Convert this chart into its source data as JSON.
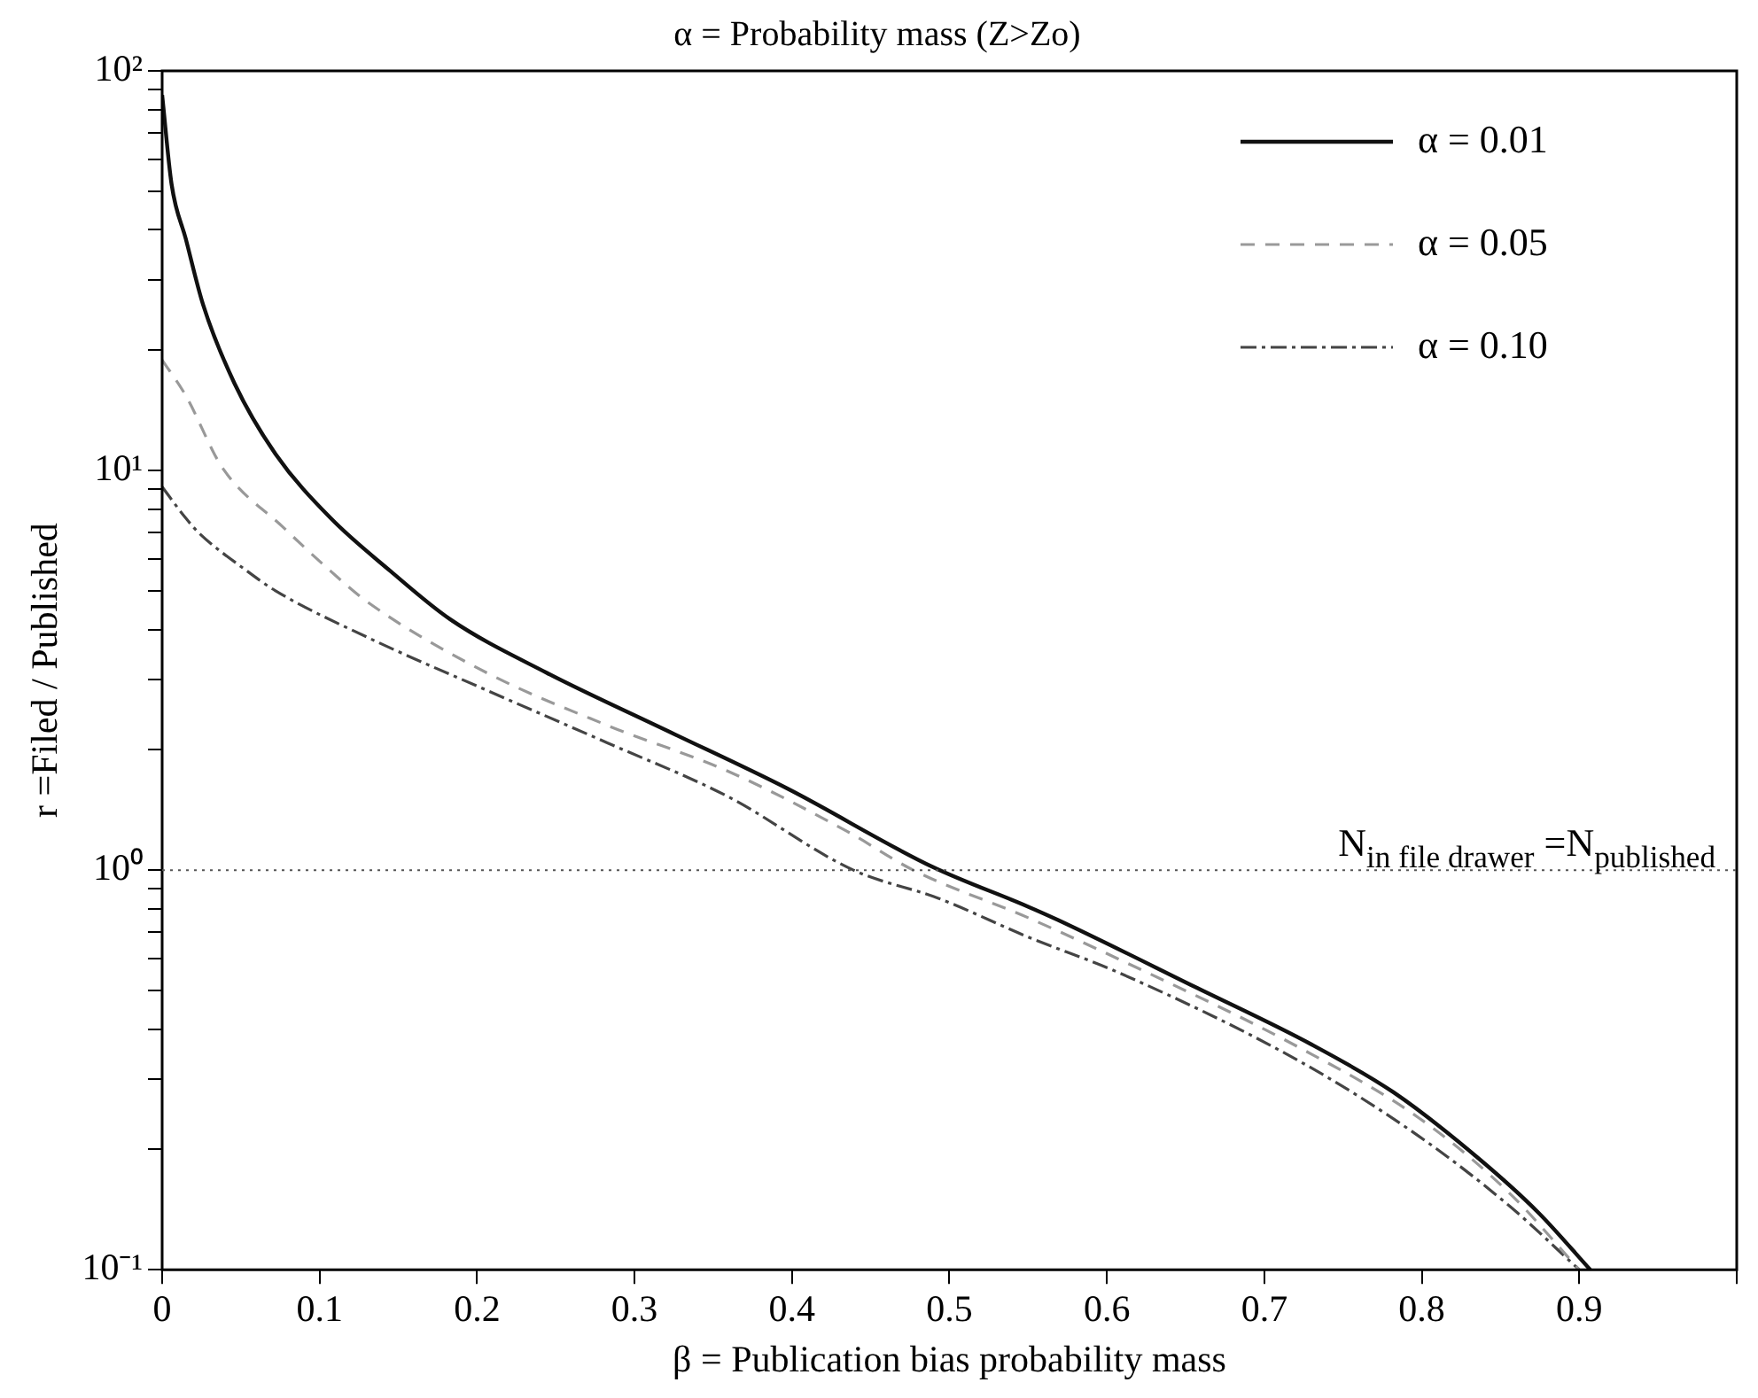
{
  "chart_data": {
    "type": "line",
    "title": "α = Probability mass (Z>Zo)",
    "xlabel": "β = Publication bias probability mass",
    "ylabel": "r =Filed / Published",
    "log": "y",
    "grid": false,
    "legend": "top right",
    "marker": "none",
    "xlim": [
      0,
      1
    ],
    "xticks": [
      {
        "value": 0,
        "label": "0"
      },
      0.1,
      0.2,
      0.3,
      0.4,
      0.5,
      0.6,
      0.7,
      0.8,
      0.9,
      {
        "value": 1,
        "label": null
      }
    ],
    "ylim": [
      0.1,
      100
    ],
    "yticks": [
      {
        "value": 0.1,
        "label": "10⁻¹"
      },
      {
        "value": 0.2,
        "label": null
      },
      {
        "value": 0.3,
        "label": null
      },
      {
        "value": 0.4,
        "label": null
      },
      {
        "value": 0.5,
        "label": null
      },
      {
        "value": 0.6,
        "label": null
      },
      {
        "value": 0.7,
        "label": null
      },
      {
        "value": 0.8,
        "label": null
      },
      {
        "value": 0.9,
        "label": null
      },
      {
        "value": 1,
        "label": "10⁰"
      },
      {
        "value": 2,
        "label": null
      },
      {
        "value": 3,
        "label": null
      },
      {
        "value": 4,
        "label": null
      },
      {
        "value": 5,
        "label": null
      },
      {
        "value": 6,
        "label": null
      },
      {
        "value": 7,
        "label": null
      },
      {
        "value": 8,
        "label": null
      },
      {
        "value": 9,
        "label": null
      },
      {
        "value": 10,
        "label": "10¹"
      },
      {
        "value": 20,
        "label": null
      },
      {
        "value": 30,
        "label": null
      },
      {
        "value": 40,
        "label": null
      },
      {
        "value": 50,
        "label": null
      },
      {
        "value": 60,
        "label": null
      },
      {
        "value": 70,
        "label": null
      },
      {
        "value": 80,
        "label": null
      },
      {
        "value": 90,
        "label": null
      },
      {
        "value": 100,
        "label": "10²"
      }
    ],
    "ref_lines": [
      {
        "axis": "y",
        "value": 1,
        "label": "N$_{in file drawer}$ =N$_{published}$",
        "line_style": "dotted",
        "color": "#555555"
      }
    ],
    "series": [
      {
        "name": "α = 0.01",
        "color": "#111111",
        "line_style": "solid",
        "x": [
          0,
          0.006,
          0.015,
          0.026,
          0.046,
          0.072,
          0.107,
          0.145,
          0.183,
          0.244,
          0.321,
          0.397,
          0.489,
          0.55,
          0.569,
          0.656,
          0.73,
          0.782,
          0.836,
          0.874,
          0.907
        ],
        "values": [
          87,
          52,
          38,
          26,
          16.5,
          11,
          7.6,
          5.6,
          4.24,
          3.12,
          2.23,
          1.6,
          1.02,
          0.81,
          0.75,
          0.51,
          0.366,
          0.278,
          0.19,
          0.139,
          0.1
        ]
      },
      {
        "name": "α = 0.05",
        "color": "#999999",
        "line_style": "dashed",
        "x": [
          0,
          0.015,
          0.038,
          0.077,
          0.107,
          0.13,
          0.206,
          0.283,
          0.359,
          0.435,
          0.477,
          0.55,
          0.607,
          0.722,
          0.798,
          0.856,
          0.9
        ],
        "values": [
          18.9,
          15.4,
          10.2,
          7.2,
          5.6,
          4.7,
          3.12,
          2.3,
          1.77,
          1.25,
          1.0,
          0.76,
          0.6,
          0.36,
          0.24,
          0.155,
          0.1
        ]
      },
      {
        "name": "α = 0.10",
        "color": "#444444",
        "line_style": "dashdot",
        "x": [
          0,
          0.015,
          0.023,
          0.054,
          0.072,
          0.13,
          0.206,
          0.283,
          0.359,
          0.439,
          0.493,
          0.55,
          0.607,
          0.722,
          0.798,
          0.856,
          0.9
        ],
        "values": [
          9.1,
          7.6,
          7.0,
          5.6,
          5.0,
          3.83,
          2.82,
          2.08,
          1.53,
          1.0,
          0.85,
          0.68,
          0.555,
          0.333,
          0.216,
          0.144,
          0.1
        ]
      }
    ]
  }
}
